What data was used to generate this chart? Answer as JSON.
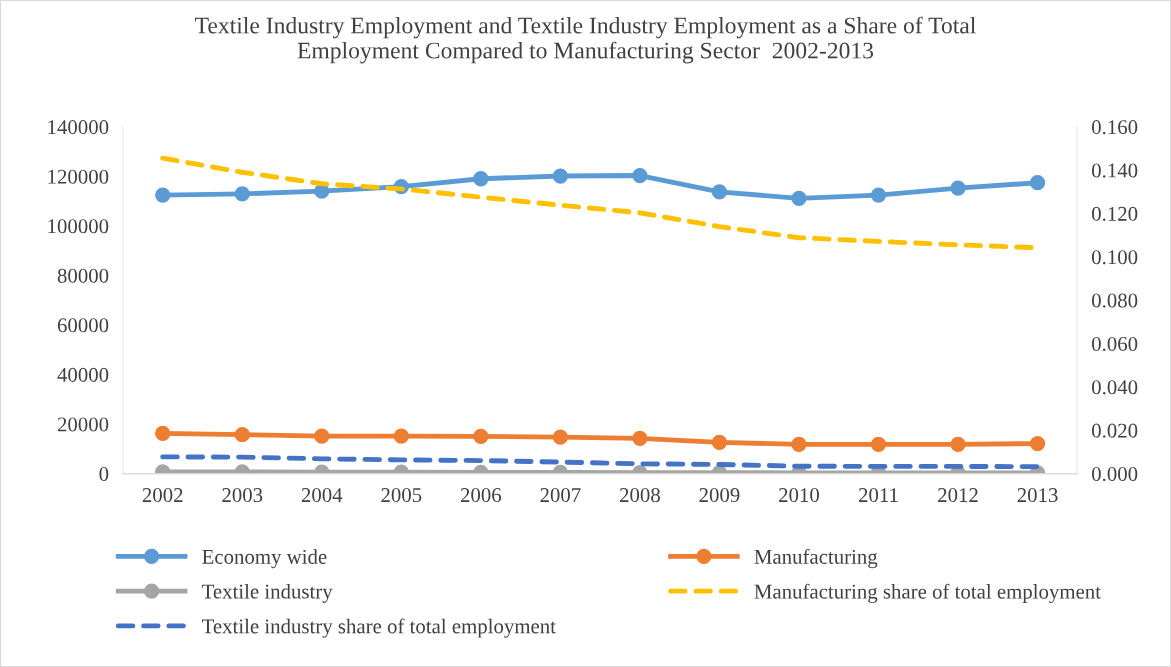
{
  "chart_data": {
    "type": "line",
    "title": "Textile Industry Employment and Textile Industry Employment as a Share of Total Employment Compared to Manufacturing Sector  2002-2013",
    "categories": [
      "2002",
      "2003",
      "2004",
      "2005",
      "2006",
      "2007",
      "2008",
      "2009",
      "2010",
      "2011",
      "2012",
      "2013"
    ],
    "series": [
      {
        "name": "Economy wide",
        "color": "#5b9bd5",
        "marker": "circle",
        "line_style": "solid",
        "values": [
          112400,
          112900,
          114000,
          115800,
          119000,
          120100,
          120300,
          113700,
          111100,
          112400,
          115200,
          117400
        ]
      },
      {
        "name": "Manufacturing",
        "color": "#ed7d31",
        "marker": "circle",
        "line_style": "solid",
        "values": [
          16200,
          15700,
          15100,
          15100,
          15000,
          14700,
          14200,
          12600,
          11800,
          11800,
          11800,
          12100
        ]
      },
      {
        "name": "Textile industry",
        "color": "#a5a5a5",
        "marker": "circle",
        "line_style": "solid",
        "values": [
          700,
          700,
          600,
          600,
          500,
          500,
          400,
          400,
          300,
          300,
          300,
          300
        ]
      },
      {
        "name": "Manufacturing share of total employment",
        "color": "#ffc000",
        "marker": "none",
        "line_style": "dashed",
        "axis": "y2",
        "values": [
          0.1455,
          0.139,
          0.1337,
          0.1313,
          0.1275,
          0.1238,
          0.1203,
          0.1139,
          0.1088,
          0.1071,
          0.1055,
          0.1042
        ]
      },
      {
        "name": "Textile industry share of total employment",
        "color": "#4472c4",
        "marker": "none",
        "line_style": "dashed",
        "axis": "y2",
        "values": [
          0.0077,
          0.0076,
          0.0068,
          0.0063,
          0.006,
          0.0053,
          0.0045,
          0.0042,
          0.0034,
          0.0033,
          0.0033,
          0.0032
        ]
      }
    ],
    "ylim": [
      0,
      140000
    ],
    "yticks": [
      0,
      20000,
      40000,
      60000,
      80000,
      100000,
      120000,
      140000
    ],
    "y2lim": [
      0,
      0.16
    ],
    "y2ticks": [
      {
        "value": 0,
        "label": "0.000"
      },
      {
        "value": 0.02,
        "label": "0.020"
      },
      {
        "value": 0.04,
        "label": "0.040"
      },
      {
        "value": 0.06,
        "label": "0.060"
      },
      {
        "value": 0.08,
        "label": "0.080"
      },
      {
        "value": 0.1,
        "label": "0.100"
      },
      {
        "value": 0.12,
        "label": "0.120"
      },
      {
        "value": 0.14,
        "label": "0.140"
      },
      {
        "value": 0.16,
        "label": "0.160"
      }
    ],
    "grid": false,
    "legend": "bottom"
  }
}
